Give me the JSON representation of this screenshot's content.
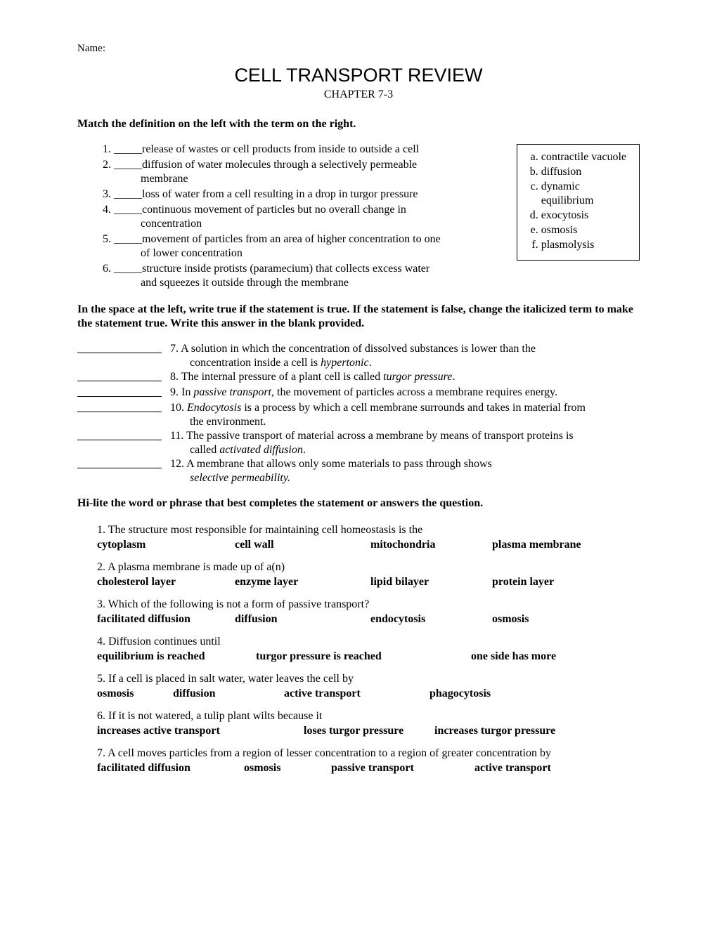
{
  "name_label": "Name:",
  "title": "CELL TRANSPORT REVIEW",
  "subtitle": "CHAPTER 7-3",
  "instr_match": "Match the definition on the left with the term on the right.",
  "match": {
    "blank": "_____ ",
    "items": [
      {
        "t1": "release of wastes or cell products from inside to outside a cell"
      },
      {
        "t1": "diffusion of water molecules through a selectively permeable",
        "t2": "membrane"
      },
      {
        "t1": "loss of water from a cell resulting in a drop in turgor pressure"
      },
      {
        "t1": "continuous movement of particles but no overall change in",
        "t2": "concentration"
      },
      {
        "t1": "movement of particles from an area of higher concentration to one",
        "t2": "of lower concentration"
      },
      {
        "t1": "structure inside protists (paramecium) that collects excess water",
        "t2": "and squeezes it outside through the membrane"
      }
    ],
    "terms": [
      "contractile vacuole",
      "diffusion",
      "dynamic",
      "equilibrium",
      "exocytosis",
      "osmosis",
      "plasmolysis"
    ]
  },
  "instr_tf": "In the space at the left, write true if the statement is true.  If the statement is false, change the italicized term to make the statement true. Write this answer in the blank provided.",
  "tf": [
    {
      "n": "7",
      "pre": "7. A solution in which the concentration of dissolved substances is lower than the",
      "cont": "concentration inside a cell is ",
      "ital": "hypertonic",
      "post": "."
    },
    {
      "n": "8",
      "pre": "8. The internal pressure of a plant cell is called ",
      "ital": "turgor pressure",
      "post": "."
    },
    {
      "n": "9",
      "pre": "9. In ",
      "ital": "passive transport",
      "post": ", the movement of particles across a membrane requires energy."
    },
    {
      "n": "10",
      "pre": "10. ",
      "ital": "Endocytosis",
      "post": " is a process by which a cell membrane surrounds and takes in material from",
      "cont2": "the environment."
    },
    {
      "n": "11",
      "pre": "11. The passive transport of material across a membrane by means of transport proteins is",
      "cont": "called ",
      "ital": "activated diffusion",
      "post": "."
    },
    {
      "n": "12",
      "pre": "12. A membrane that allows only some materials to pass through shows",
      "cont": "",
      "ital": "selective permeability.",
      "post": ""
    }
  ],
  "instr_mc": "Hi-lite the word or phrase that best completes the statement or answers the question.",
  "mc": [
    {
      "stem": "1.   The structure most responsible for maintaining cell homeostasis is the",
      "opts": [
        "cytoplasm",
        "cell wall",
        "mitochondria",
        "plasma membrane"
      ],
      "layout": "4"
    },
    {
      "stem": "2.   A plasma membrane is made up of a(n)",
      "opts": [
        "cholesterol layer",
        "enzyme layer",
        "lipid bilayer",
        "protein layer"
      ],
      "layout": "4"
    },
    {
      "stem": "3.   Which of the following is not a form of passive transport?",
      "opts": [
        "facilitated diffusion",
        "diffusion",
        "endocytosis",
        "osmosis"
      ],
      "layout": "4"
    },
    {
      "stem": "4.   Diffusion continues until",
      "opts": [
        "equilibrium is reached",
        "turgor pressure is reached",
        "one side has more"
      ],
      "layout": "3a"
    },
    {
      "stem": "5.   If a cell is placed in salt water, water leaves the cell by",
      "opts": [
        "osmosis",
        "diffusion",
        "active transport",
        "phagocytosis"
      ],
      "layout": "4b"
    },
    {
      "stem": "6.   If it is not watered, a tulip plant wilts because it",
      "opts": [
        "increases active transport",
        "loses turgor pressure",
        "increases turgor pressure"
      ],
      "layout": "3b"
    },
    {
      "stem": "7.   A cell moves particles from a region of lesser concentration to a region of greater concentration by",
      "opts": [
        "facilitated diffusion",
        "osmosis",
        "passive transport",
        "active transport"
      ],
      "layout": "4c"
    }
  ]
}
